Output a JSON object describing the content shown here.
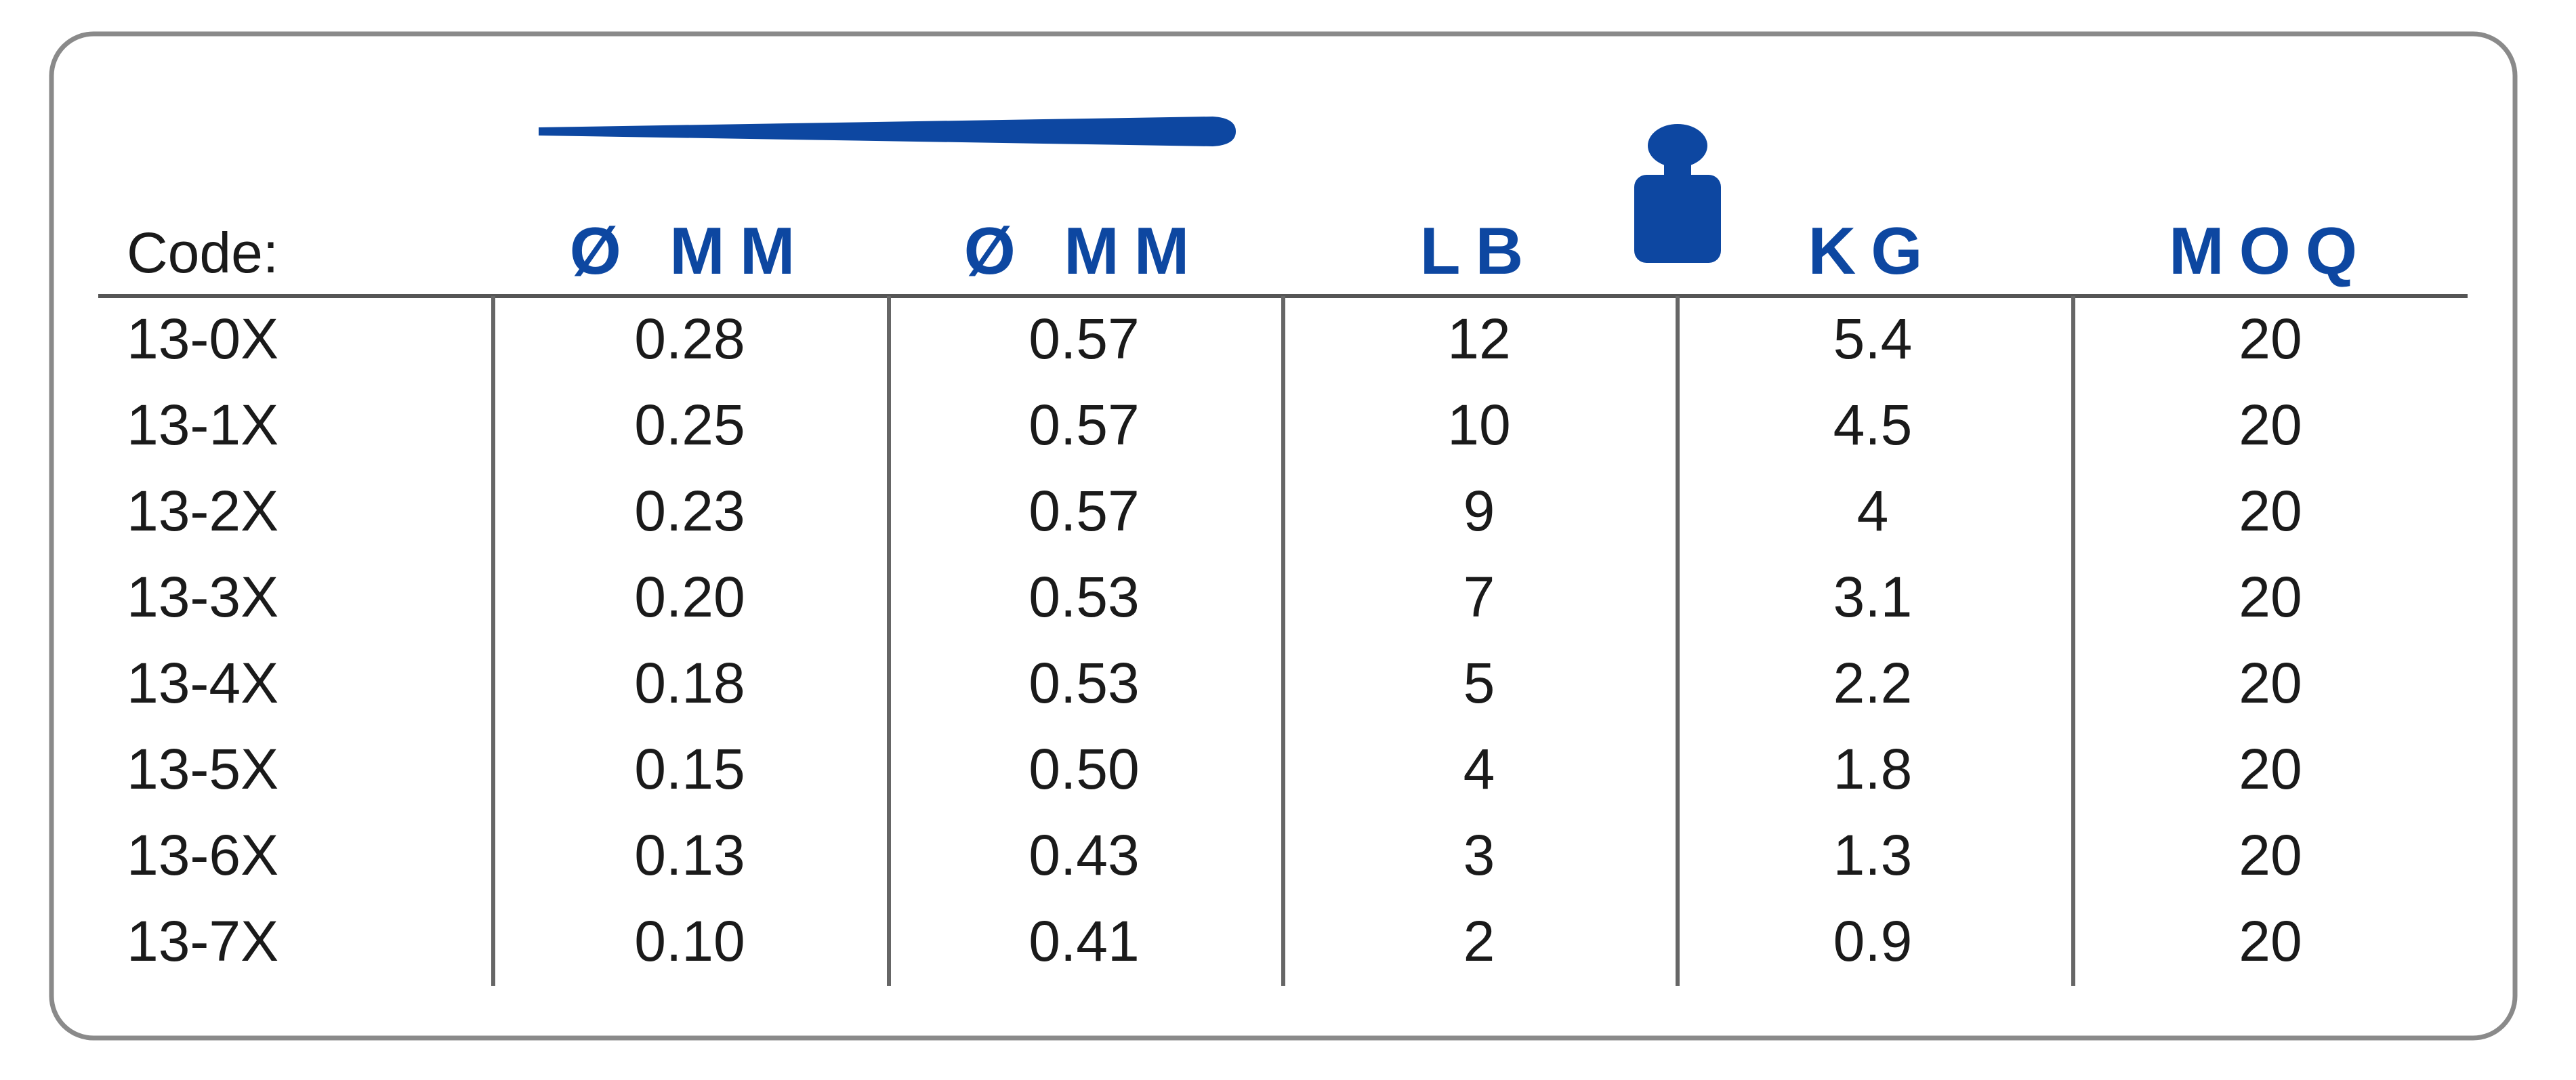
{
  "table": {
    "header": [
      "Code:",
      "Ø MM",
      "Ø MM",
      "LB",
      "KG",
      "MOQ"
    ],
    "rows": [
      [
        "13-0X",
        "0.28",
        "0.57",
        "12",
        "5.4",
        "20"
      ],
      [
        "13-1X",
        "0.25",
        "0.57",
        "10",
        "4.5",
        "20"
      ],
      [
        "13-2X",
        "0.23",
        "0.57",
        "9",
        "4",
        "20"
      ],
      [
        "13-3X",
        "0.20",
        "0.53",
        "7",
        "3.1",
        "20"
      ],
      [
        "13-4X",
        "0.18",
        "0.53",
        "5",
        "2.2",
        "20"
      ],
      [
        "13-5X",
        "0.15",
        "0.50",
        "4",
        "1.8",
        "20"
      ],
      [
        "13-6X",
        "0.13",
        "0.43",
        "3",
        "1.3",
        "20"
      ],
      [
        "13-7X",
        "0.10",
        "0.41",
        "2",
        "0.9",
        "20"
      ]
    ]
  }
}
